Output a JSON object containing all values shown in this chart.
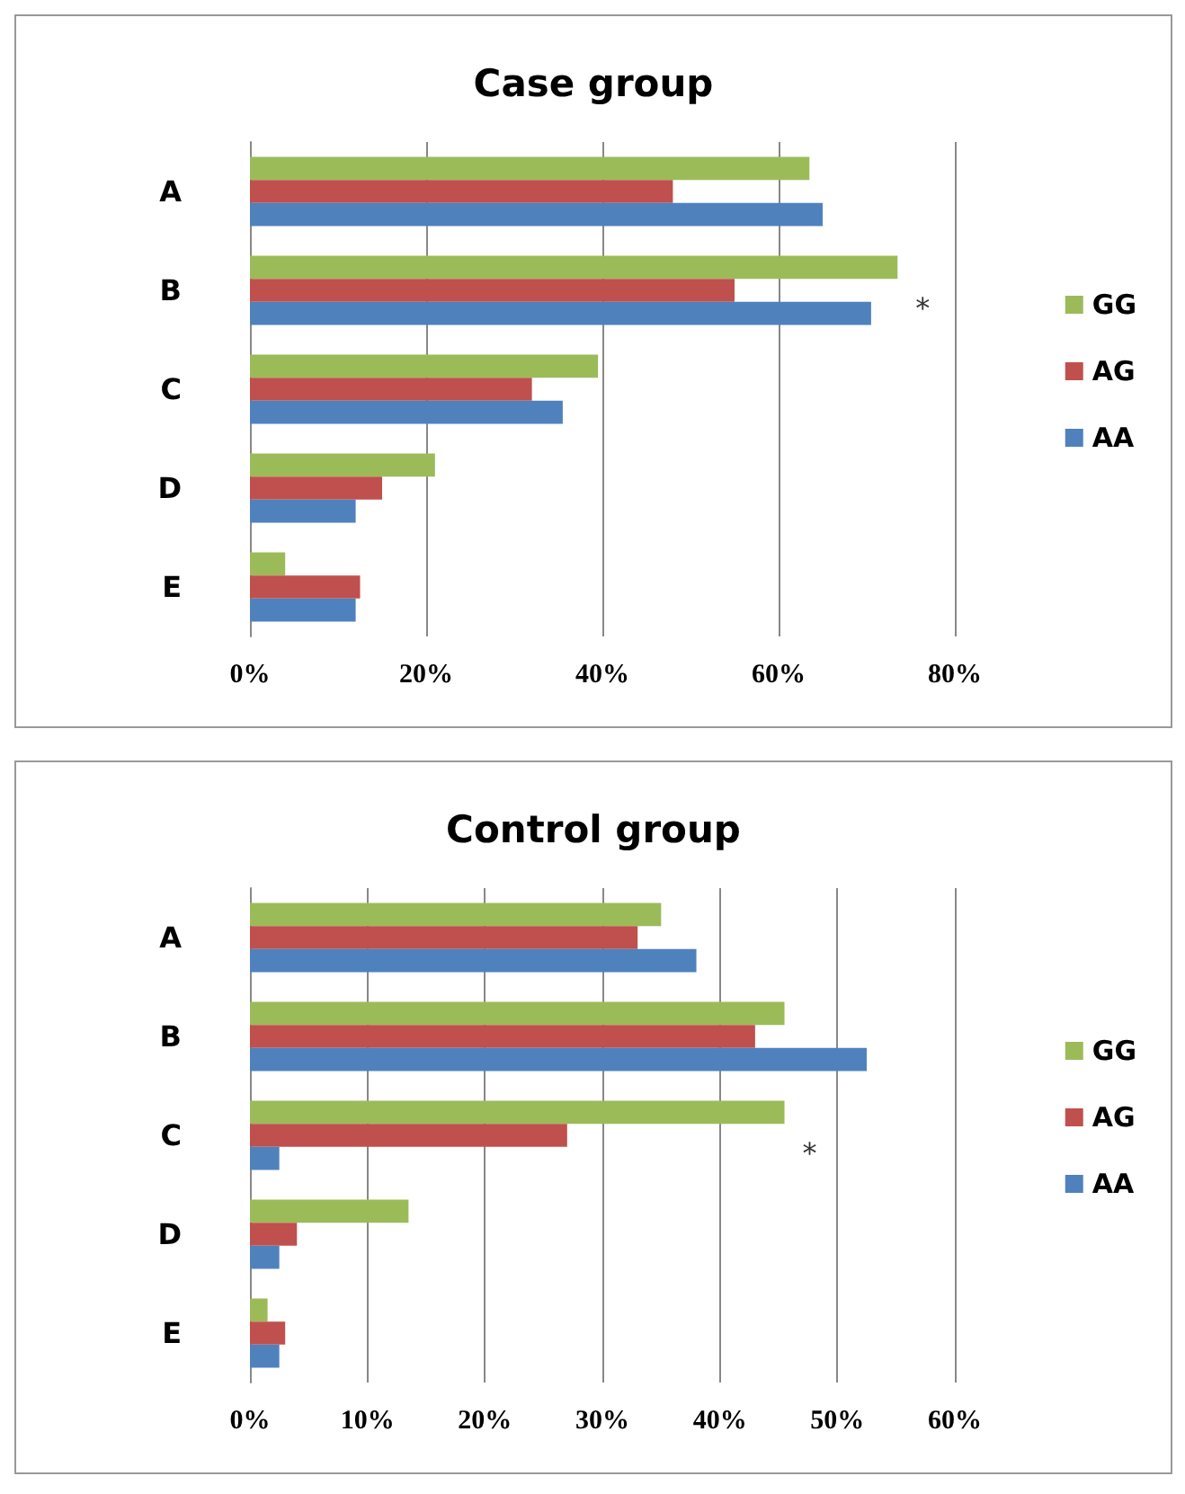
{
  "chart_data": [
    {
      "type": "bar",
      "orientation": "horizontal",
      "title": "Case group",
      "categories": [
        "A",
        "B",
        "C",
        "D",
        "E"
      ],
      "series": [
        {
          "name": "GG",
          "color": "#9bbb59",
          "values": [
            63.5,
            73.5,
            39.5,
            21,
            4
          ]
        },
        {
          "name": "AG",
          "color": "#c0504d",
          "values": [
            48,
            55,
            32,
            15,
            12.5
          ]
        },
        {
          "name": "AA",
          "color": "#4f81bd",
          "values": [
            65,
            70.5,
            35.5,
            12,
            12
          ]
        }
      ],
      "xlim": [
        0,
        80
      ],
      "xticks": [
        {
          "value": 0,
          "label": "0%"
        },
        {
          "value": 20,
          "label": "20%"
        },
        {
          "value": 40,
          "label": "40%"
        },
        {
          "value": 60,
          "label": "60%"
        },
        {
          "value": 80,
          "label": "80%"
        }
      ],
      "grid": "x",
      "legend": "right",
      "annotations": [
        "*"
      ]
    },
    {
      "type": "bar",
      "orientation": "horizontal",
      "title": "Control group",
      "categories": [
        "A",
        "B",
        "C",
        "D",
        "E"
      ],
      "series": [
        {
          "name": "GG",
          "color": "#9bbb59",
          "values": [
            35,
            45.5,
            45.5,
            13.5,
            1.5
          ]
        },
        {
          "name": "AG",
          "color": "#c0504d",
          "values": [
            33,
            43,
            27,
            4,
            3
          ]
        },
        {
          "name": "AA",
          "color": "#4f81bd",
          "values": [
            38,
            52.5,
            2.5,
            2.5,
            2.5
          ]
        }
      ],
      "xlim": [
        0,
        60
      ],
      "xticks": [
        {
          "value": 0,
          "label": "0%"
        },
        {
          "value": 10,
          "label": "10%"
        },
        {
          "value": 20,
          "label": "20%"
        },
        {
          "value": 30,
          "label": "30%"
        },
        {
          "value": 40,
          "label": "40%"
        },
        {
          "value": 50,
          "label": "50%"
        },
        {
          "value": 60,
          "label": "60%"
        }
      ],
      "grid": "x",
      "legend": "right",
      "annotations": [
        "*"
      ]
    }
  ]
}
